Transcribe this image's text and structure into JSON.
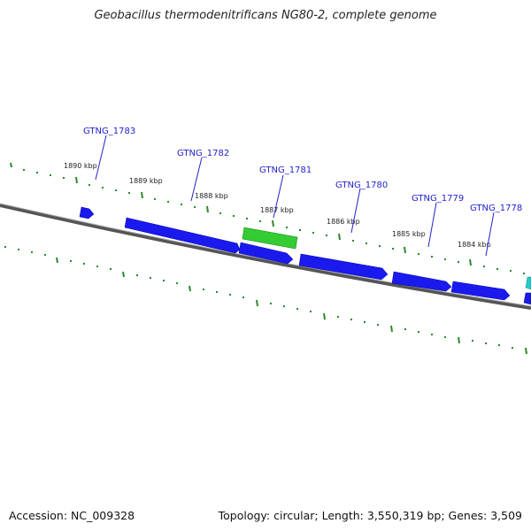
{
  "title": "Geobacillus thermodenitrificans NG80-2, complete genome",
  "footer": {
    "accession": "Accession: NC_009328",
    "summary": "Topology: circular; Length: 3,550,319 bp; Genes: 3,509"
  },
  "colors": {
    "gene_blue": "#1a1aee",
    "gene_green": "#33cc33",
    "gene_cyan": "#22cccc",
    "tick_green": "#2a8a2a",
    "backbone": "#777777",
    "label_blue": "#2222cc"
  },
  "kbp_labels": [
    "1890 kbp",
    "1889 kbp",
    "1888 kbp",
    "1887 kbp",
    "1886 kbp",
    "1885 kbp",
    "1884 kbp"
  ],
  "genes": [
    "GTNG_1783",
    "GTNG_1782",
    "GTNG_1781",
    "GTNG_1780",
    "GTNG_1779",
    "GTNG_1778"
  ]
}
